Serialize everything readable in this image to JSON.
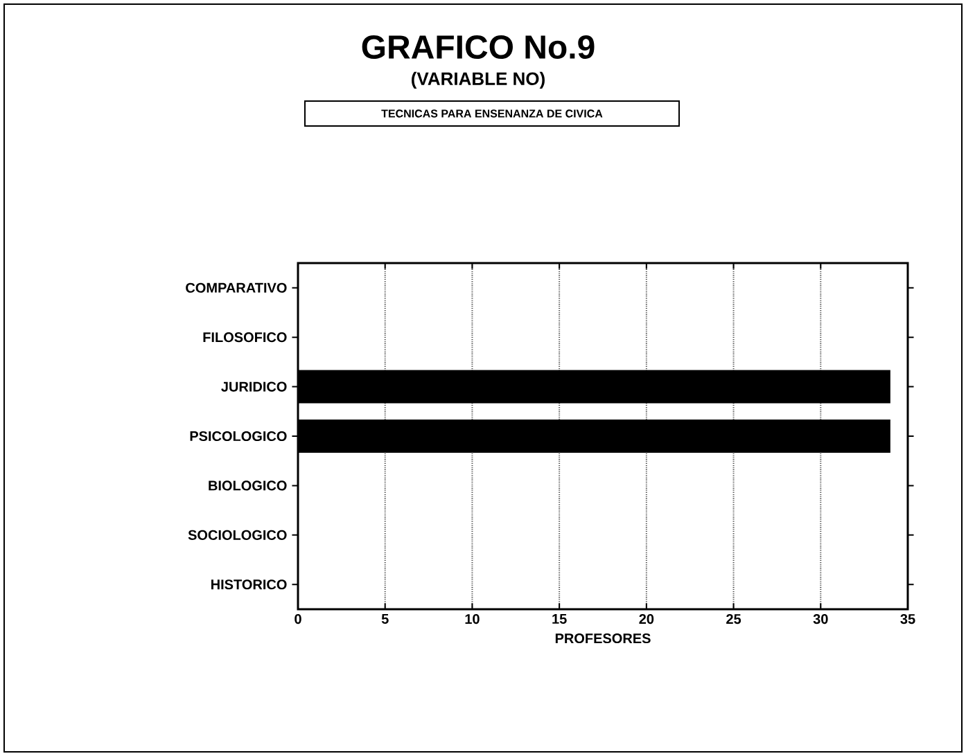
{
  "chart_data": {
    "type": "bar",
    "orientation": "horizontal",
    "title": "GRAFICO No.9",
    "subtitle": "(VARIABLE NO)",
    "annotations": [
      "TECNICAS PARA ENSENANZA DE CIVICA"
    ],
    "categories": [
      "COMPARATIVO",
      "FILOSOFICO",
      "JURIDICO",
      "PSICOLOGICO",
      "BIOLOGICO",
      "SOCIOLOGICO",
      "HISTORICO"
    ],
    "values": [
      0,
      0,
      34,
      34,
      0,
      0,
      0
    ],
    "color": "#000000",
    "xlabel": "PROFESORES",
    "xlim": [
      0,
      35
    ],
    "xticks": [
      0,
      5,
      10,
      15,
      20,
      25,
      30,
      35
    ],
    "grid": "x"
  }
}
